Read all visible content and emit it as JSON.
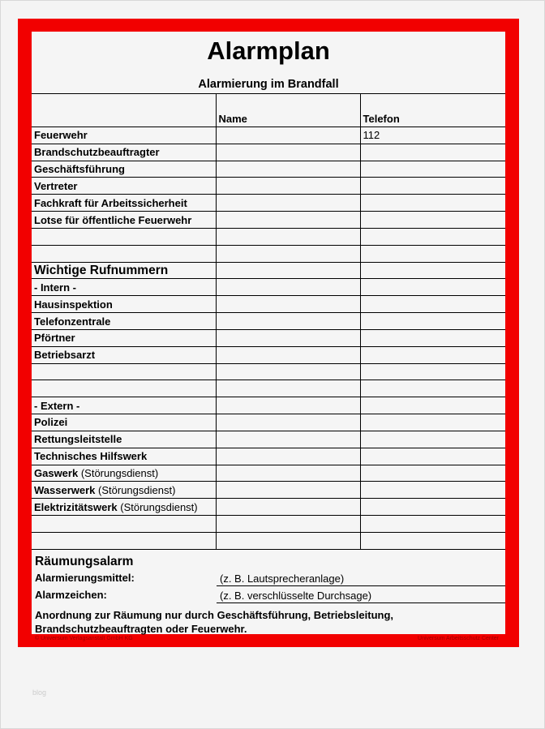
{
  "title": "Alarmplan",
  "subtitle": "Alarmierung im Brandfall",
  "columns": [
    "",
    "Name",
    "Telefon"
  ],
  "rows": [
    {
      "label": "Feuerwehr",
      "phone": "112"
    },
    {
      "label": "Brandschutzbeauftragter"
    },
    {
      "label": "Geschäftsführung"
    },
    {
      "label": "Vertreter"
    },
    {
      "label": "Fachkraft für Arbeitssicherheit"
    },
    {
      "label": "Lotse für öffentliche Feuerwehr"
    },
    {
      "label": ""
    },
    {
      "label": ""
    },
    {
      "label": "Wichtige Rufnummern",
      "section": true
    },
    {
      "label": "- Intern -"
    },
    {
      "label": "Hausinspektion"
    },
    {
      "label": "Telefonzentrale"
    },
    {
      "label": "Pförtner"
    },
    {
      "label": "Betriebsarzt"
    },
    {
      "label": ""
    },
    {
      "label": ""
    },
    {
      "label": "- Extern -"
    },
    {
      "label": "Polizei"
    },
    {
      "label": "Rettungsleitstelle"
    },
    {
      "label": "Technisches Hilfswerk"
    },
    {
      "label": "Gaswerk",
      "note": "(Störungsdienst)"
    },
    {
      "label": "Wasserwerk",
      "note": "(Störungsdienst)"
    },
    {
      "label": "Elektrizitätswerk",
      "note": "(Störungsdienst)"
    },
    {
      "label": ""
    },
    {
      "label": ""
    }
  ],
  "evacuation": {
    "heading": "Räumungsalarm",
    "means_label": "Alarmierungsmittel:",
    "means_value": "(z. B. Lautsprecheranlage)",
    "signal_label": "Alarmzeichen:",
    "signal_value": "(z. B. verschlüsselte Durchsage)",
    "order": "Anordnung zur Räumung nur durch Geschäftsführung, Betriebsleitung, Brandschutzbeauftragten oder Feuerwehr."
  },
  "footer": {
    "left": "© Universum Verlagsanstalt GmbH KG",
    "right": "Universum Arbeitsschutz Center"
  },
  "watermark": "blog",
  "colors": {
    "frame": "#f20000"
  }
}
